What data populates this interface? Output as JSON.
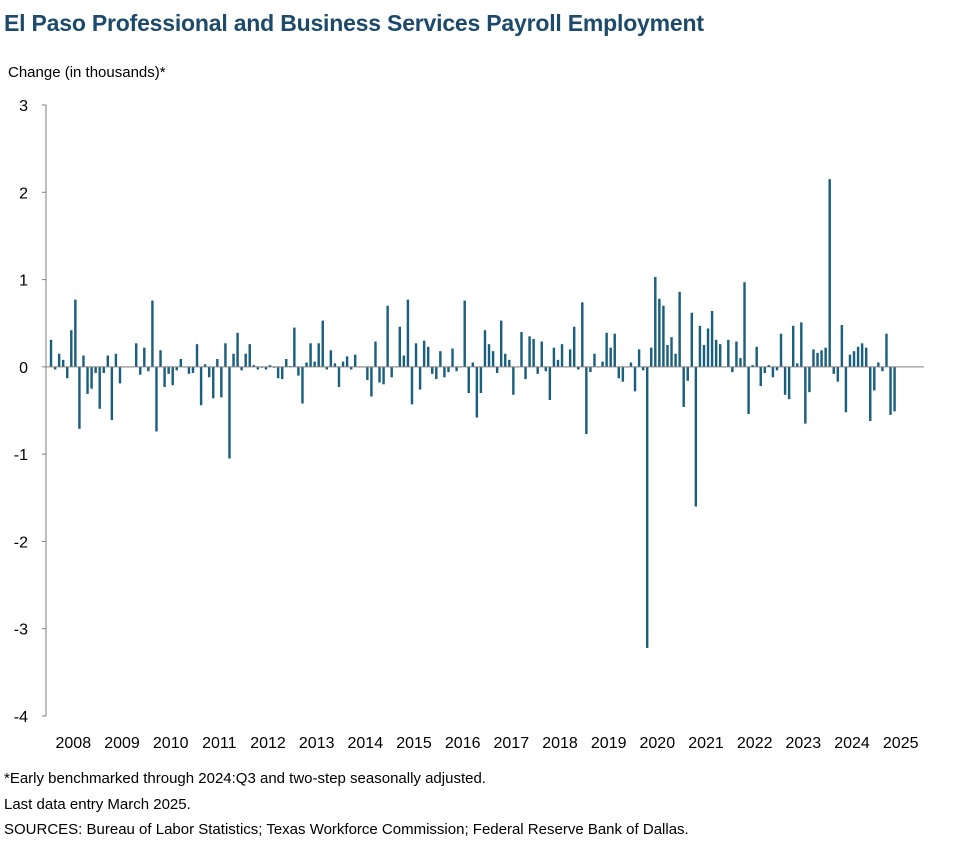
{
  "chart_title": "El Paso Professional and Business Services Payroll Employment",
  "notes": {
    "benchmark": "*Early benchmarked through 2024:Q3 and two-step seasonally adjusted.",
    "last_entry": "Last data entry March 2025.",
    "sources": "SOURCES: Bureau of Labor Statistics; Texas Workforce Commission; Federal Reserve Bank of Dallas."
  },
  "colors": {
    "bar": "#1b5f7e",
    "axis": "#7f7f7f",
    "title": "#1d4a6b"
  },
  "chart_data": {
    "type": "bar",
    "title": "El Paso Professional and Business Services Payroll Employment",
    "ylabel": "Change (in thousands)*",
    "xlabel": "",
    "ylim": [
      -4,
      3
    ],
    "yticks": [
      3,
      2,
      1,
      0,
      -1,
      -2,
      -3,
      -4
    ],
    "xtick_labels": [
      "2008",
      "2009",
      "2010",
      "2011",
      "2012",
      "2013",
      "2014",
      "2015",
      "2016",
      "2017",
      "2018",
      "2019",
      "2020",
      "2021",
      "2022",
      "2023",
      "2024",
      "2025"
    ],
    "start": "2008-01",
    "end": "2025-03",
    "frequency": "monthly",
    "grid": false,
    "legend": "none",
    "values": [
      0.31,
      -0.03,
      0.15,
      0.08,
      -0.13,
      0.42,
      0.77,
      -0.71,
      0.13,
      -0.31,
      -0.25,
      -0.07,
      -0.48,
      -0.07,
      0.13,
      -0.61,
      0.15,
      -0.19,
      0.0,
      0.0,
      0.0,
      0.27,
      -0.09,
      0.22,
      -0.05,
      0.76,
      -0.74,
      0.19,
      -0.23,
      -0.08,
      -0.21,
      -0.04,
      0.09,
      0.0,
      -0.08,
      -0.07,
      0.26,
      -0.44,
      0.03,
      -0.12,
      -0.36,
      0.09,
      -0.35,
      0.27,
      -1.05,
      0.15,
      0.39,
      -0.04,
      0.15,
      0.26,
      0.02,
      -0.03,
      -0.01,
      -0.03,
      0.02,
      -0.01,
      -0.13,
      -0.14,
      0.09,
      0.01,
      0.45,
      -0.1,
      -0.42,
      0.05,
      0.27,
      0.06,
      0.27,
      0.53,
      -0.03,
      0.19,
      0.04,
      -0.23,
      0.06,
      0.12,
      -0.03,
      0.14,
      0.0,
      0.0,
      -0.15,
      -0.34,
      0.29,
      -0.18,
      -0.2,
      0.7,
      -0.12,
      0.0,
      0.46,
      0.13,
      0.77,
      -0.43,
      0.27,
      -0.26,
      0.3,
      0.23,
      -0.08,
      -0.14,
      0.18,
      -0.12,
      -0.06,
      0.21,
      -0.05,
      0.0,
      0.76,
      -0.3,
      0.05,
      -0.58,
      -0.3,
      0.42,
      0.26,
      0.18,
      -0.07,
      0.53,
      0.15,
      0.08,
      -0.32,
      0.0,
      0.4,
      -0.14,
      0.35,
      0.32,
      -0.08,
      0.29,
      -0.05,
      -0.38,
      0.22,
      0.08,
      0.26,
      0.0,
      0.2,
      0.46,
      -0.03,
      0.74,
      -0.77,
      -0.06,
      0.15,
      0.0,
      0.06,
      0.39,
      0.22,
      0.38,
      -0.13,
      -0.17,
      0.0,
      0.05,
      -0.28,
      0.2,
      -0.04,
      -3.22,
      0.22,
      1.03,
      0.78,
      0.7,
      0.25,
      0.34,
      0.15,
      0.86,
      -0.46,
      -0.16,
      0.62,
      -1.6,
      0.47,
      0.25,
      0.44,
      0.64,
      0.31,
      0.26,
      0.0,
      0.31,
      -0.06,
      0.29,
      0.1,
      0.97,
      -0.54,
      0.02,
      0.23,
      -0.22,
      -0.07,
      0.02,
      -0.12,
      -0.04,
      0.38,
      -0.32,
      -0.37,
      0.47,
      0.04,
      0.51,
      -0.65,
      -0.29,
      0.2,
      0.16,
      0.19,
      0.22,
      2.15,
      -0.08,
      -0.17,
      0.48,
      -0.52,
      0.14,
      0.18,
      0.23,
      0.27,
      0.22,
      -0.62,
      -0.27,
      0.05,
      -0.05,
      0.38,
      -0.55,
      -0.51
    ]
  }
}
